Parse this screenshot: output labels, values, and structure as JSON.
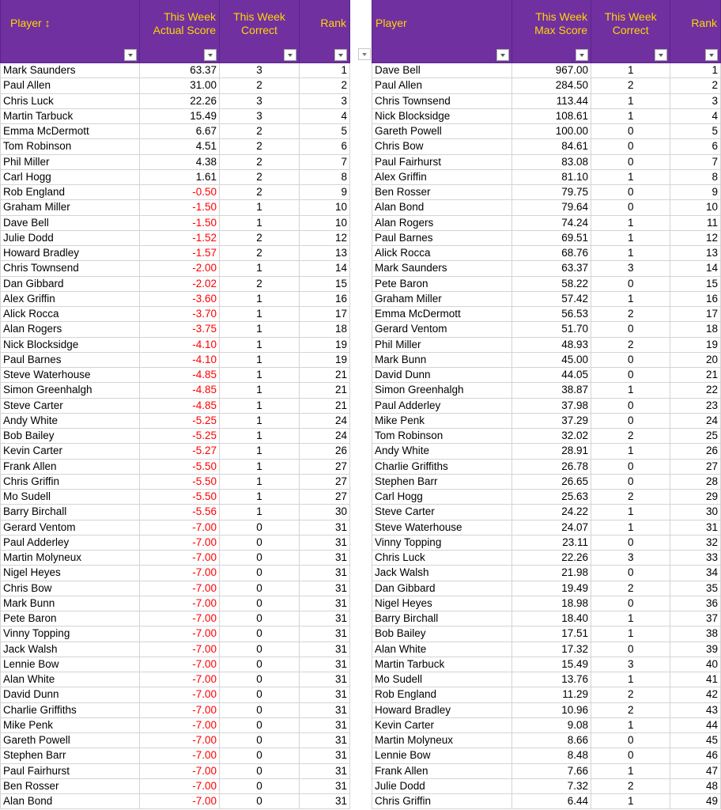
{
  "left_table": {
    "headers": {
      "player": "Player ↕",
      "score_line1": "This Week",
      "score_line2": "Actual Score",
      "correct_line1": "This Week",
      "correct_line2": "Correct",
      "rank": "Rank"
    },
    "rows": [
      [
        "Mark Saunders",
        "63.37",
        "3",
        "1"
      ],
      [
        "Paul Allen",
        "31.00",
        "2",
        "2"
      ],
      [
        "Chris Luck",
        "22.26",
        "3",
        "3"
      ],
      [
        "Martin Tarbuck",
        "15.49",
        "3",
        "4"
      ],
      [
        "Emma McDermott",
        "6.67",
        "2",
        "5"
      ],
      [
        "Tom Robinson",
        "4.51",
        "2",
        "6"
      ],
      [
        "Phil Miller",
        "4.38",
        "2",
        "7"
      ],
      [
        "Carl Hogg",
        "1.61",
        "2",
        "8"
      ],
      [
        "Rob England",
        "-0.50",
        "2",
        "9"
      ],
      [
        "Graham Miller",
        "-1.50",
        "1",
        "10"
      ],
      [
        "Dave Bell",
        "-1.50",
        "1",
        "10"
      ],
      [
        "Julie Dodd",
        "-1.52",
        "2",
        "12"
      ],
      [
        "Howard Bradley",
        "-1.57",
        "2",
        "13"
      ],
      [
        "Chris Townsend",
        "-2.00",
        "1",
        "14"
      ],
      [
        "Dan Gibbard",
        "-2.02",
        "2",
        "15"
      ],
      [
        "Alex Griffin",
        "-3.60",
        "1",
        "16"
      ],
      [
        "Alick Rocca",
        "-3.70",
        "1",
        "17"
      ],
      [
        "Alan Rogers",
        "-3.75",
        "1",
        "18"
      ],
      [
        "Nick Blocksidge",
        "-4.10",
        "1",
        "19"
      ],
      [
        "Paul Barnes",
        "-4.10",
        "1",
        "19"
      ],
      [
        "Steve Waterhouse",
        "-4.85",
        "1",
        "21"
      ],
      [
        "Simon Greenhalgh",
        "-4.85",
        "1",
        "21"
      ],
      [
        "Steve Carter",
        "-4.85",
        "1",
        "21"
      ],
      [
        "Andy White",
        "-5.25",
        "1",
        "24"
      ],
      [
        "Bob Bailey",
        "-5.25",
        "1",
        "24"
      ],
      [
        "Kevin Carter",
        "-5.27",
        "1",
        "26"
      ],
      [
        "Frank Allen",
        "-5.50",
        "1",
        "27"
      ],
      [
        "Chris Griffin",
        "-5.50",
        "1",
        "27"
      ],
      [
        "Mo Sudell",
        "-5.50",
        "1",
        "27"
      ],
      [
        "Barry Birchall",
        "-5.56",
        "1",
        "30"
      ],
      [
        "Gerard Ventom",
        "-7.00",
        "0",
        "31"
      ],
      [
        "Paul Adderley",
        "-7.00",
        "0",
        "31"
      ],
      [
        "Martin Molyneux",
        "-7.00",
        "0",
        "31"
      ],
      [
        "Nigel Heyes",
        "-7.00",
        "0",
        "31"
      ],
      [
        "Chris Bow",
        "-7.00",
        "0",
        "31"
      ],
      [
        "Mark Bunn",
        "-7.00",
        "0",
        "31"
      ],
      [
        "Pete Baron",
        "-7.00",
        "0",
        "31"
      ],
      [
        "Vinny Topping",
        "-7.00",
        "0",
        "31"
      ],
      [
        "Jack Walsh",
        "-7.00",
        "0",
        "31"
      ],
      [
        "Lennie Bow",
        "-7.00",
        "0",
        "31"
      ],
      [
        "Alan White",
        "-7.00",
        "0",
        "31"
      ],
      [
        "David Dunn",
        "-7.00",
        "0",
        "31"
      ],
      [
        "Charlie Griffiths",
        "-7.00",
        "0",
        "31"
      ],
      [
        "Mike Penk",
        "-7.00",
        "0",
        "31"
      ],
      [
        "Gareth Powell",
        "-7.00",
        "0",
        "31"
      ],
      [
        "Stephen Barr",
        "-7.00",
        "0",
        "31"
      ],
      [
        "Paul Fairhurst",
        "-7.00",
        "0",
        "31"
      ],
      [
        "Ben Rosser",
        "-7.00",
        "0",
        "31"
      ],
      [
        "Alan Bond",
        "-7.00",
        "0",
        "31"
      ]
    ]
  },
  "right_table": {
    "headers": {
      "player": "Player",
      "score_line1": "This Week",
      "score_line2": "Max Score",
      "correct_line1": "This Week",
      "correct_line2": "Correct",
      "rank": "Rank"
    },
    "rows": [
      [
        "Dave Bell",
        "967.00",
        "1",
        "1"
      ],
      [
        "Paul Allen",
        "284.50",
        "2",
        "2"
      ],
      [
        "Chris Townsend",
        "113.44",
        "1",
        "3"
      ],
      [
        "Nick Blocksidge",
        "108.61",
        "1",
        "4"
      ],
      [
        "Gareth Powell",
        "100.00",
        "0",
        "5"
      ],
      [
        "Chris Bow",
        "84.61",
        "0",
        "6"
      ],
      [
        "Paul Fairhurst",
        "83.08",
        "0",
        "7"
      ],
      [
        "Alex Griffin",
        "81.10",
        "1",
        "8"
      ],
      [
        "Ben Rosser",
        "79.75",
        "0",
        "9"
      ],
      [
        "Alan Bond",
        "79.64",
        "0",
        "10"
      ],
      [
        "Alan Rogers",
        "74.24",
        "1",
        "11"
      ],
      [
        "Paul Barnes",
        "69.51",
        "1",
        "12"
      ],
      [
        "Alick Rocca",
        "68.76",
        "1",
        "13"
      ],
      [
        "Mark Saunders",
        "63.37",
        "3",
        "14"
      ],
      [
        "Pete Baron",
        "58.22",
        "0",
        "15"
      ],
      [
        "Graham Miller",
        "57.42",
        "1",
        "16"
      ],
      [
        "Emma McDermott",
        "56.53",
        "2",
        "17"
      ],
      [
        "Gerard Ventom",
        "51.70",
        "0",
        "18"
      ],
      [
        "Phil Miller",
        "48.93",
        "2",
        "19"
      ],
      [
        "Mark Bunn",
        "45.00",
        "0",
        "20"
      ],
      [
        "David Dunn",
        "44.05",
        "0",
        "21"
      ],
      [
        "Simon Greenhalgh",
        "38.87",
        "1",
        "22"
      ],
      [
        "Paul Adderley",
        "37.98",
        "0",
        "23"
      ],
      [
        "Mike Penk",
        "37.29",
        "0",
        "24"
      ],
      [
        "Tom Robinson",
        "32.02",
        "2",
        "25"
      ],
      [
        "Andy White",
        "28.91",
        "1",
        "26"
      ],
      [
        "Charlie Griffiths",
        "26.78",
        "0",
        "27"
      ],
      [
        "Stephen Barr",
        "26.65",
        "0",
        "28"
      ],
      [
        "Carl Hogg",
        "25.63",
        "2",
        "29"
      ],
      [
        "Steve Carter",
        "24.22",
        "1",
        "30"
      ],
      [
        "Steve Waterhouse",
        "24.07",
        "1",
        "31"
      ],
      [
        "Vinny Topping",
        "23.11",
        "0",
        "32"
      ],
      [
        "Chris Luck",
        "22.26",
        "3",
        "33"
      ],
      [
        "Jack Walsh",
        "21.98",
        "0",
        "34"
      ],
      [
        "Dan Gibbard",
        "19.49",
        "2",
        "35"
      ],
      [
        "Nigel Heyes",
        "18.98",
        "0",
        "36"
      ],
      [
        "Barry Birchall",
        "18.40",
        "1",
        "37"
      ],
      [
        "Bob Bailey",
        "17.51",
        "1",
        "38"
      ],
      [
        "Alan White",
        "17.32",
        "0",
        "39"
      ],
      [
        "Martin Tarbuck",
        "15.49",
        "3",
        "40"
      ],
      [
        "Mo Sudell",
        "13.76",
        "1",
        "41"
      ],
      [
        "Rob England",
        "11.29",
        "2",
        "42"
      ],
      [
        "Howard Bradley",
        "10.96",
        "2",
        "43"
      ],
      [
        "Kevin Carter",
        "9.08",
        "1",
        "44"
      ],
      [
        "Martin Molyneux",
        "8.66",
        "0",
        "45"
      ],
      [
        "Lennie Bow",
        "8.48",
        "0",
        "46"
      ],
      [
        "Frank Allen",
        "7.66",
        "1",
        "47"
      ],
      [
        "Julie Dodd",
        "7.32",
        "2",
        "48"
      ],
      [
        "Chris Griffin",
        "6.44",
        "1",
        "49"
      ]
    ]
  },
  "colors": {
    "header_bg": "#7030a0",
    "header_text": "#ffd700",
    "negative_text": "#ff0000",
    "gridline": "#d4d4d4"
  },
  "icons": {
    "filter": "filter-dropdown-arrow-icon",
    "sort": "sort-up-down-arrow"
  }
}
